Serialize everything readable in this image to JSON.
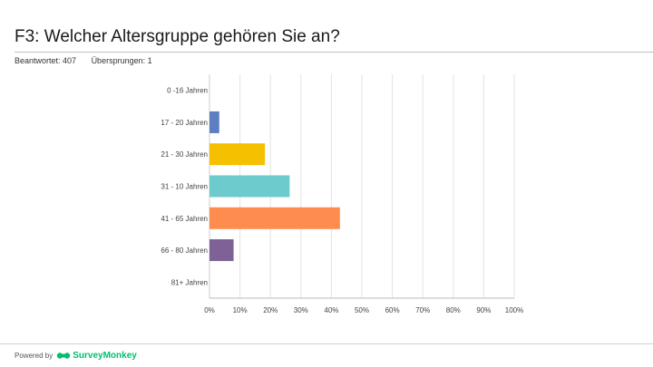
{
  "header": {
    "title": "F3: Welcher Altersgruppe gehören Sie an?",
    "answered": "Beantwortet: 407",
    "skipped": "Übersprungen: 1"
  },
  "footer": {
    "powered_by": "Powered by",
    "brand": "SurveyMonkey",
    "brand_color": "#00bf6f"
  },
  "chart_data": {
    "type": "bar",
    "orientation": "horizontal",
    "title": "F3: Welcher Altersgruppe gehören Sie an?",
    "xlabel": "",
    "ylabel": "",
    "xlim": [
      0,
      100
    ],
    "grid": true,
    "categories": [
      "0 -16 Jahren",
      "17 - 20 Jahren",
      "21 - 30 Jahren",
      "31 - 10 Jahren",
      "41 - 65 Jahren",
      "66 - 80 Jahren",
      "81+ Jahren"
    ],
    "values": [
      0,
      3.2,
      18.2,
      26.3,
      42.8,
      7.9,
      0
    ],
    "colors": [
      "#5b7fbf",
      "#5b7fbf",
      "#f5c000",
      "#6dcbcd",
      "#ff8c4f",
      "#7e6196",
      "#5b7fbf"
    ],
    "tick_labels": [
      "0%",
      "10%",
      "20%",
      "30%",
      "40%",
      "50%",
      "60%",
      "70%",
      "80%",
      "90%",
      "100%"
    ]
  }
}
